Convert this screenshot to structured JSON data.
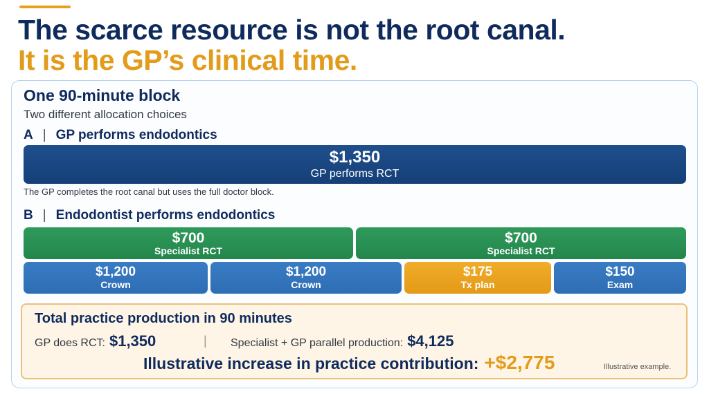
{
  "headline": {
    "line1": "The scarce resource is not the root canal.",
    "line2": "It is the GP’s clinical time."
  },
  "panel": {
    "title": "One 90-minute block",
    "subtitle": "Two different allocation choices"
  },
  "option_a": {
    "letter": "A",
    "separator": "|",
    "label": "GP performs endodontics",
    "block": {
      "amount": "$1,350",
      "caption": "GP performs RCT"
    },
    "note": "The GP completes the root canal but uses the full doctor block."
  },
  "option_b": {
    "letter": "B",
    "separator": "|",
    "label": "Endodontist performs endodontics",
    "specialist_blocks": [
      {
        "amount": "$700",
        "caption": "Specialist RCT"
      },
      {
        "amount": "$700",
        "caption": "Specialist RCT"
      }
    ],
    "gp_blocks": [
      {
        "amount": "$1,200",
        "caption": "Crown"
      },
      {
        "amount": "$1,200",
        "caption": "Crown"
      },
      {
        "amount": "$175",
        "caption": "Tx plan"
      },
      {
        "amount": "$150",
        "caption": "Exam"
      }
    ]
  },
  "summary": {
    "title": "Total practice production in 90 minutes",
    "gp_label": "GP does RCT:",
    "gp_value": "$1,350",
    "divider": "|",
    "specialist_label": "Specialist + GP parallel production:",
    "specialist_value": "$4,125",
    "increase_label": "Illustrative increase in practice contribution:",
    "increase_value": "+$2,775",
    "footnote": "Illustrative example."
  },
  "colors": {
    "navy": "#0f2a5c",
    "gold": "#e29b1a",
    "gp_block": "#1a4783",
    "specialist_green": "#2a9155",
    "gp_blue": "#3375bc",
    "tx_plan_gold": "#eaa321"
  }
}
